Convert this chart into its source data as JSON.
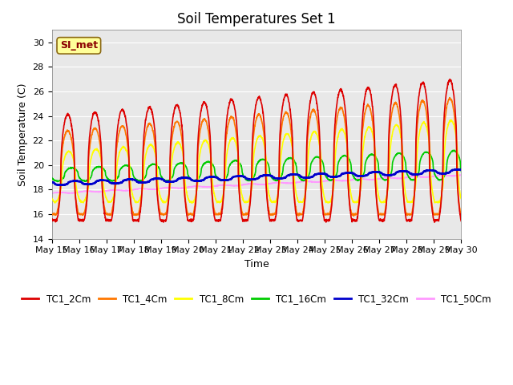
{
  "title": "Soil Temperatures Set 1",
  "xlabel": "Time",
  "ylabel": "Soil Temperature (C)",
  "ylim": [
    14,
    31
  ],
  "yticks": [
    14,
    16,
    18,
    20,
    22,
    24,
    26,
    28,
    30
  ],
  "annotation": "SI_met",
  "series": {
    "TC1_2Cm": {
      "color": "#DD0000",
      "lw": 1.2
    },
    "TC1_4Cm": {
      "color": "#FF7700",
      "lw": 1.2
    },
    "TC1_8Cm": {
      "color": "#FFFF00",
      "lw": 1.2
    },
    "TC1_16Cm": {
      "color": "#00CC00",
      "lw": 1.2
    },
    "TC1_32Cm": {
      "color": "#0000CC",
      "lw": 1.8
    },
    "TC1_50Cm": {
      "color": "#FF99FF",
      "lw": 1.2
    }
  },
  "bg_color": "#E8E8E8",
  "fig_bg": "#FFFFFF",
  "title_fontsize": 12,
  "axis_fontsize": 9,
  "tick_fontsize": 8,
  "xtick_labels": [
    "May 15",
    "May 16",
    "May 17",
    "May 18",
    "May 19",
    "May 20",
    "May 21",
    "May 22",
    "May 23",
    "May 24",
    "May 25",
    "May 26",
    "May 27",
    "May 28",
    "May 29",
    "May 30"
  ]
}
